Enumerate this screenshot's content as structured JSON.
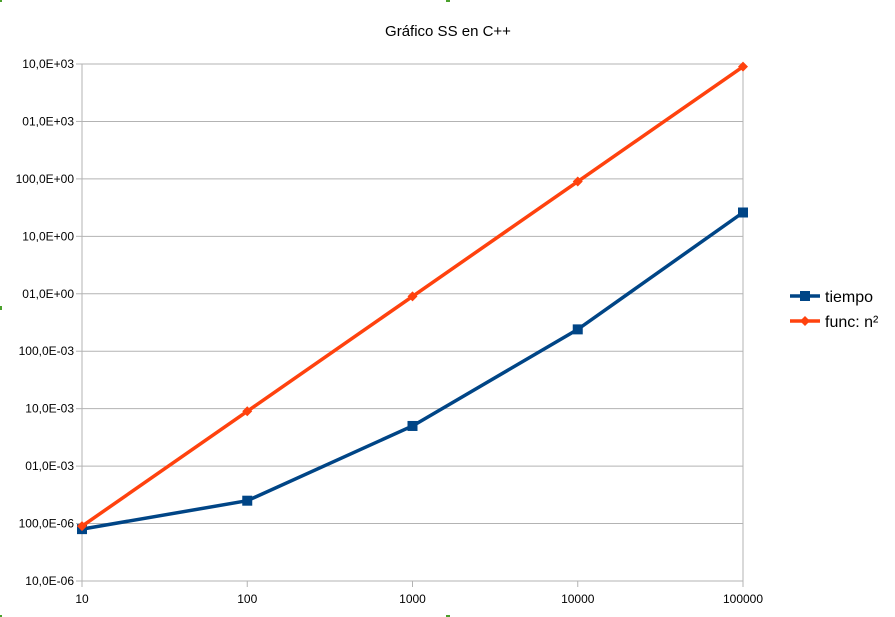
{
  "chart_data": {
    "type": "line",
    "title": "Gráfico SS en C++",
    "xlabel": "",
    "ylabel": "",
    "x_scale": "log",
    "y_scale": "log",
    "x": [
      10,
      100,
      1000,
      10000,
      100000
    ],
    "x_tick_labels": [
      "10",
      "100",
      "1000",
      "10000",
      "100000"
    ],
    "y_tick_labels": [
      "10,0E-06",
      "100,0E-06",
      "01,0E-03",
      "10,0E-03",
      "100,0E-03",
      "01,0E+00",
      "10,0E+00",
      "100,0E+00",
      "01,0E+03",
      "10,0E+03"
    ],
    "ylim": [
      1e-05,
      10000
    ],
    "grid": true,
    "legend_position": "right",
    "series": [
      {
        "name": "tiempo",
        "color": "#004586",
        "marker": "square",
        "values": [
          8e-05,
          0.00025,
          0.005,
          0.24,
          26
        ]
      },
      {
        "name": "func: n²",
        "color": "#ff420e",
        "marker": "diamond",
        "values": [
          9e-05,
          0.009,
          0.9,
          90,
          9000
        ]
      }
    ]
  }
}
